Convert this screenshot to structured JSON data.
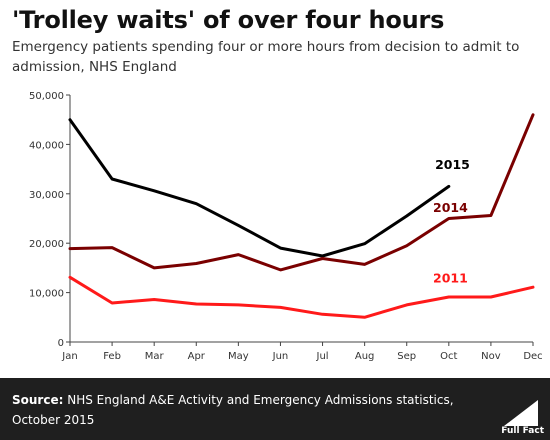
{
  "header": {
    "title": "'Trolley waits' of over four hours",
    "subtitle": "Emergency patients spending four or more hours from decision to admit to admission, NHS England"
  },
  "footer": {
    "source_label": "Source:",
    "source_text": " NHS England A&E Activity and Emergency Admissions statistics, October 2015",
    "logo_text": "Full Fact"
  },
  "chart_data": {
    "type": "line",
    "title": "'Trolley waits' of over four hours",
    "categories": [
      "Jan",
      "Feb",
      "Mar",
      "Apr",
      "May",
      "Jun",
      "Jul",
      "Aug",
      "Sep",
      "Oct",
      "Nov",
      "Dec"
    ],
    "ylim": [
      0,
      50000
    ],
    "yticks": [
      0,
      10000,
      20000,
      30000,
      40000,
      50000
    ],
    "ytick_labels": [
      "0",
      "10,000",
      "20,000",
      "30,000",
      "40,000",
      "50,000"
    ],
    "grid": false,
    "series": [
      {
        "name": "2015",
        "color": "#000000",
        "values": [
          45000,
          33000,
          30600,
          28000,
          23600,
          19000,
          17400,
          19900,
          25500,
          31500,
          null,
          null
        ]
      },
      {
        "name": "2014",
        "color": "#7a0000",
        "values": [
          18900,
          19100,
          15000,
          15900,
          17700,
          14600,
          16900,
          15700,
          19500,
          25000,
          25600,
          46000
        ]
      },
      {
        "name": "2011",
        "color": "#ff1a1a",
        "values": [
          13100,
          7900,
          8600,
          7700,
          7500,
          7000,
          5600,
          5000,
          7500,
          9100,
          9100,
          11100
        ]
      }
    ]
  }
}
